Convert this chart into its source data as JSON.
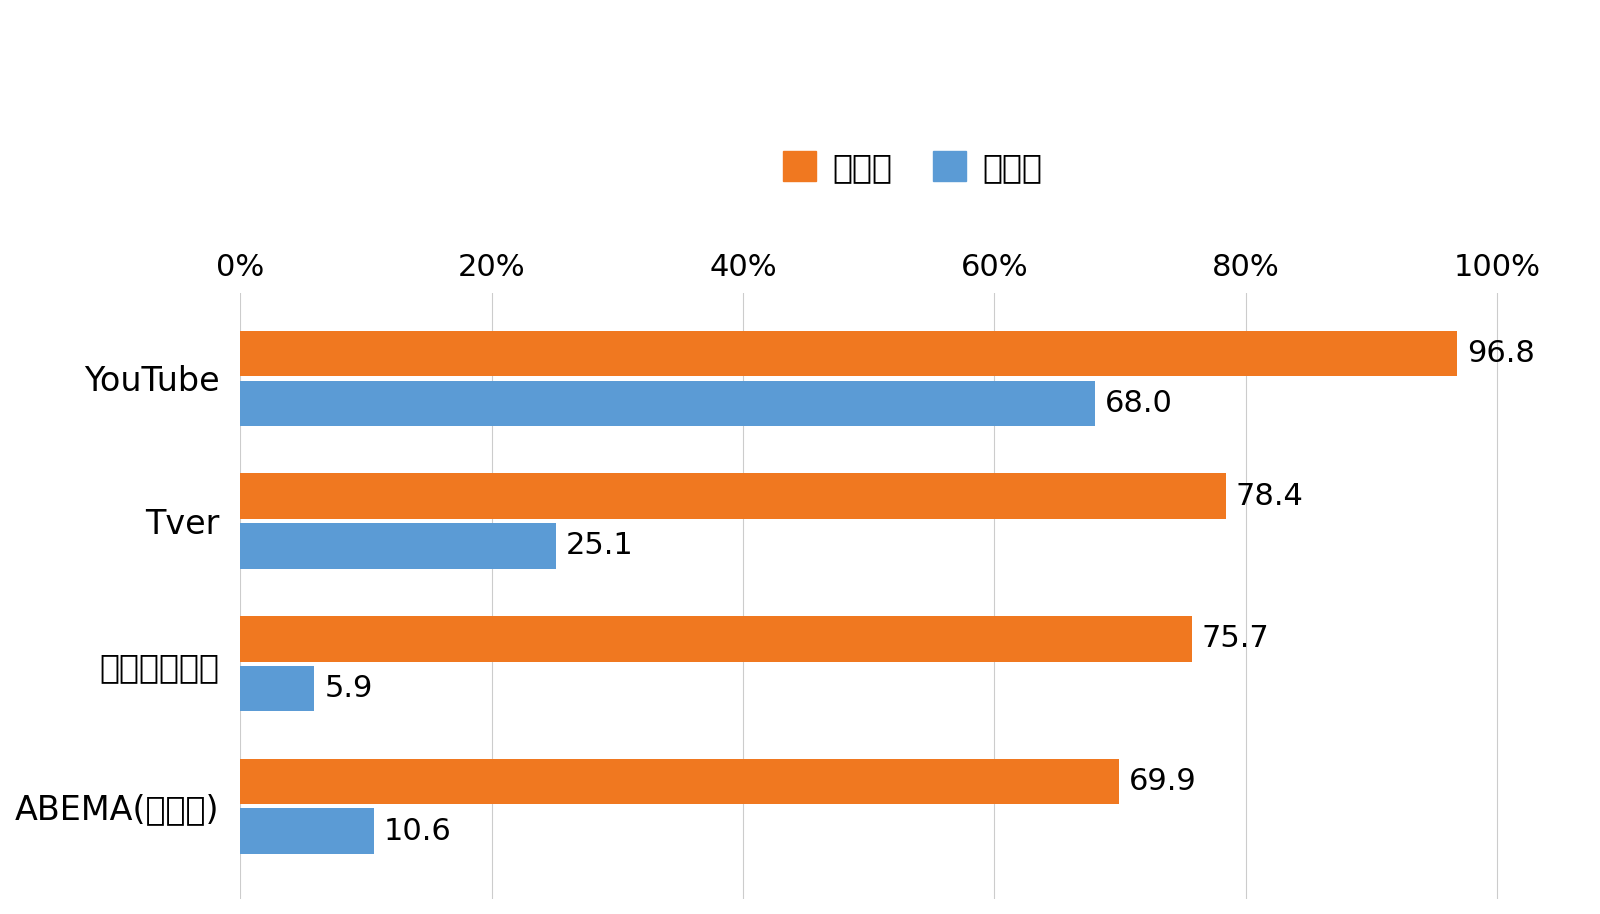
{
  "categories": [
    "YouTube",
    "Tver",
    "ニコニコ動画",
    "ABEMA(アベマ)"
  ],
  "recognition_rate": [
    96.8,
    78.4,
    75.7,
    69.9
  ],
  "usage_rate": [
    68.0,
    25.1,
    5.9,
    10.6
  ],
  "orange_color": "#F07820",
  "blue_color": "#5B9BD5",
  "background_color": "#FFFFFF",
  "legend_label_recognition": "認知率",
  "legend_label_usage": "利用率",
  "xlim": [
    0,
    107
  ],
  "xticks": [
    0,
    20,
    40,
    60,
    80,
    100
  ],
  "xtick_labels": [
    "0%",
    "20%",
    "40%",
    "60%",
    "80%",
    "100%"
  ],
  "bar_height": 0.32,
  "tick_fontsize": 22,
  "category_fontsize": 24,
  "legend_fontsize": 24,
  "value_fontsize": 22
}
